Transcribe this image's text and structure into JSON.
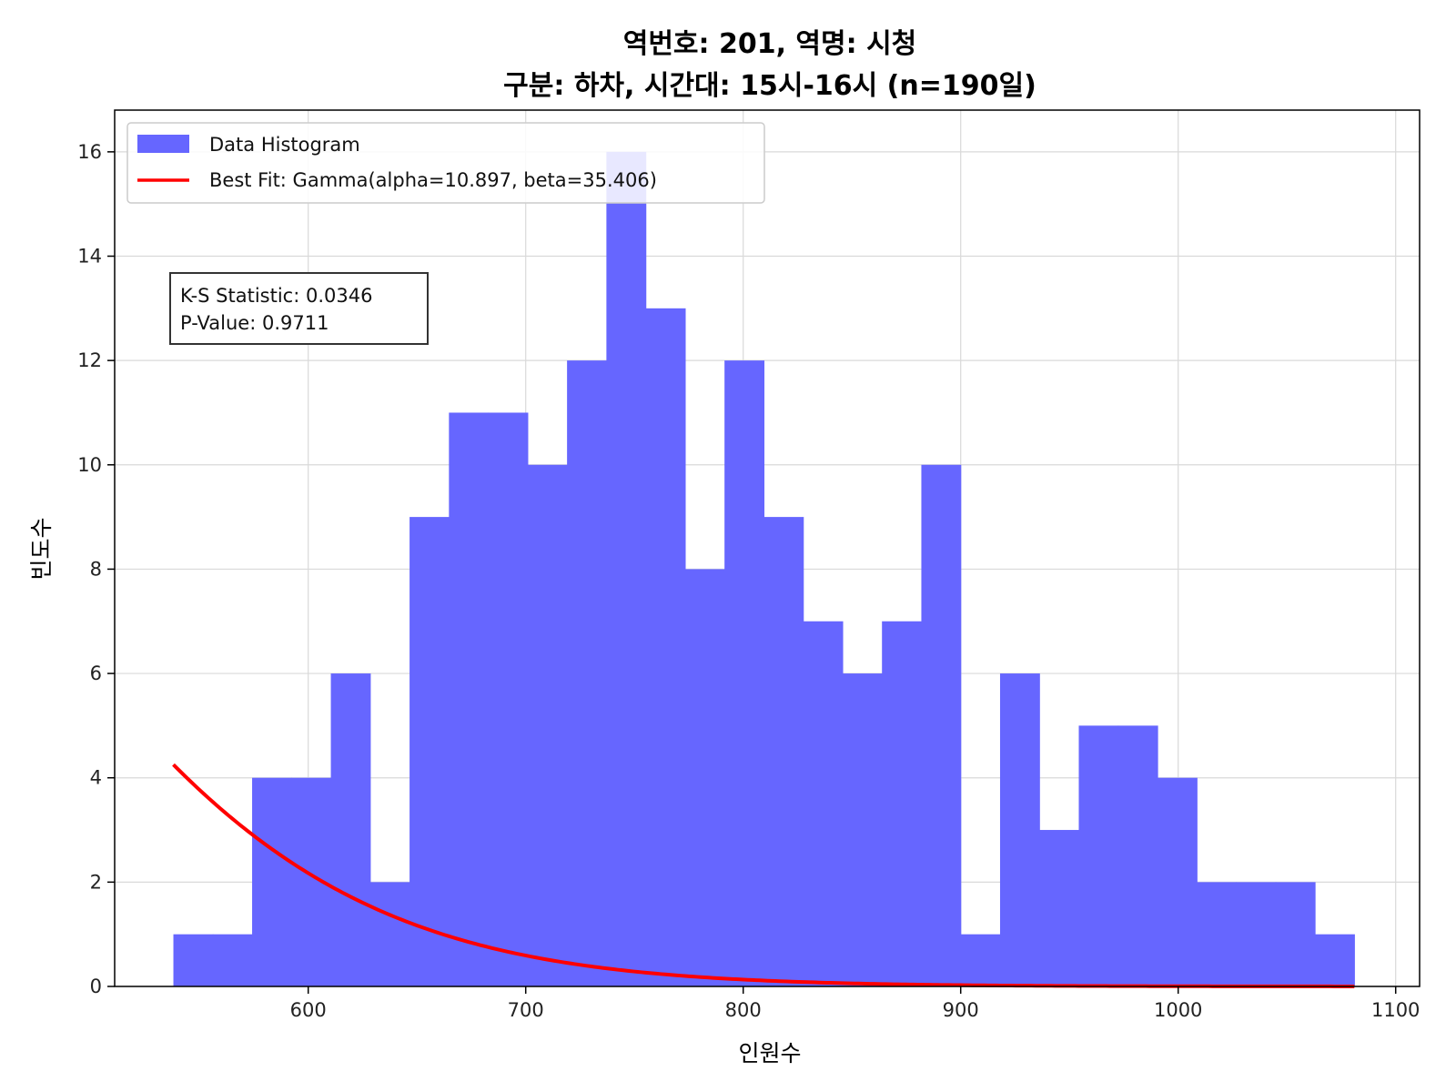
{
  "chart_data": {
    "type": "bar",
    "title_line1": "역번호: 201, 역명: 시청",
    "title_line2": "구분: 하차, 시간대: 15시-16시 (n=190일)",
    "xlabel": "인원수",
    "ylabel": "빈도수",
    "xlim": [
      511,
      1111
    ],
    "ylim": [
      0,
      16.8
    ],
    "xticks": [
      600,
      700,
      800,
      900,
      1000,
      1100
    ],
    "yticks": [
      0,
      2,
      4,
      6,
      8,
      10,
      12,
      14,
      16
    ],
    "grid": true,
    "bins": {
      "edges": [
        538,
        556.1,
        574.2,
        592.3,
        610.4,
        628.5,
        646.6,
        664.7,
        682.8,
        700.9,
        719,
        737.1,
        755.2,
        773.3,
        791.4,
        809.5,
        827.6,
        845.7,
        863.8,
        881.9,
        900,
        918.1,
        936.2,
        954.3,
        972.4,
        990.5,
        1008.6,
        1026.7,
        1044.8,
        1062.9,
        1081
      ],
      "counts": [
        1,
        1,
        4,
        4,
        6,
        2,
        9,
        11,
        11,
        10,
        12,
        16,
        13,
        8,
        12,
        9,
        7,
        6,
        7,
        10,
        1,
        6,
        3,
        5,
        5,
        4,
        2,
        2,
        2,
        1
      ],
      "color": "#6666ff"
    },
    "fit": {
      "distribution": "Gamma",
      "alpha": 10.897,
      "beta": 35.406,
      "scale_count": 3438,
      "x_range": [
        538,
        1081
      ],
      "color": "#ff0000"
    },
    "legend": {
      "placement": "top-left",
      "items": [
        {
          "label": "Data Histogram",
          "color": "#6666ff",
          "kind": "patch"
        },
        {
          "label": "Best Fit: Gamma(alpha=10.897, beta=35.406)",
          "color": "#ff0000",
          "kind": "line"
        }
      ]
    },
    "stats_box": {
      "line1": "K-S Statistic: 0.0346",
      "line2": "P-Value: 0.9711"
    }
  }
}
